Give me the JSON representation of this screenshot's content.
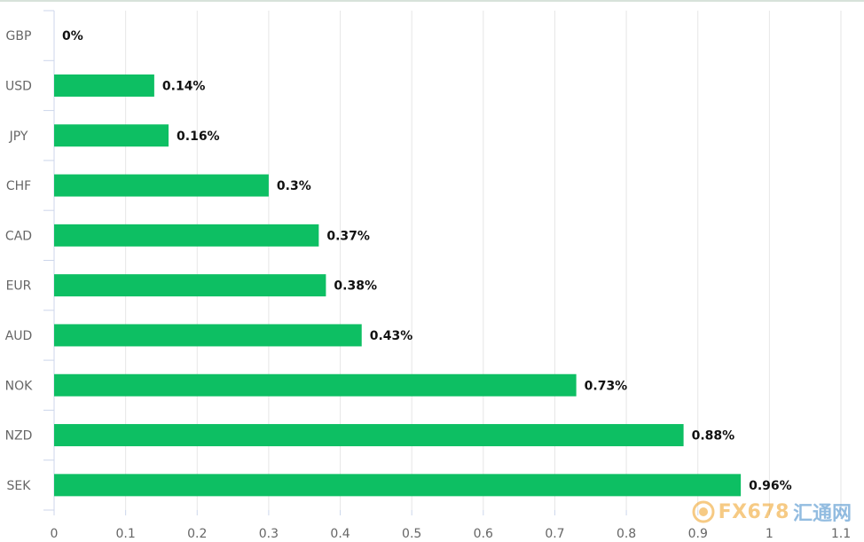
{
  "chart_data": {
    "type": "bar",
    "orientation": "horizontal",
    "categories": [
      "GBP",
      "USD",
      "JPY",
      "CHF",
      "CAD",
      "EUR",
      "AUD",
      "NOK",
      "NZD",
      "SEK"
    ],
    "values": [
      0,
      0.14,
      0.16,
      0.3,
      0.37,
      0.38,
      0.43,
      0.73,
      0.88,
      0.96
    ],
    "data_labels": [
      "0%",
      "0.14%",
      "0.16%",
      "0.3%",
      "0.37%",
      "0.38%",
      "0.43%",
      "0.73%",
      "0.88%",
      "0.96%"
    ],
    "x_ticks": [
      "0",
      "0.1",
      "0.2",
      "0.3",
      "0.4",
      "0.5",
      "0.6",
      "0.7",
      "0.8",
      "0.9",
      "1",
      "1.1"
    ],
    "xlim": [
      0,
      1.1
    ],
    "grid": "vertical",
    "bar_color": "#0dbf63",
    "title": "",
    "xlabel": "",
    "ylabel": ""
  },
  "watermark": {
    "brand": "FX678",
    "brand_cn": "汇通网",
    "icon": "fx678-logo-icon"
  }
}
